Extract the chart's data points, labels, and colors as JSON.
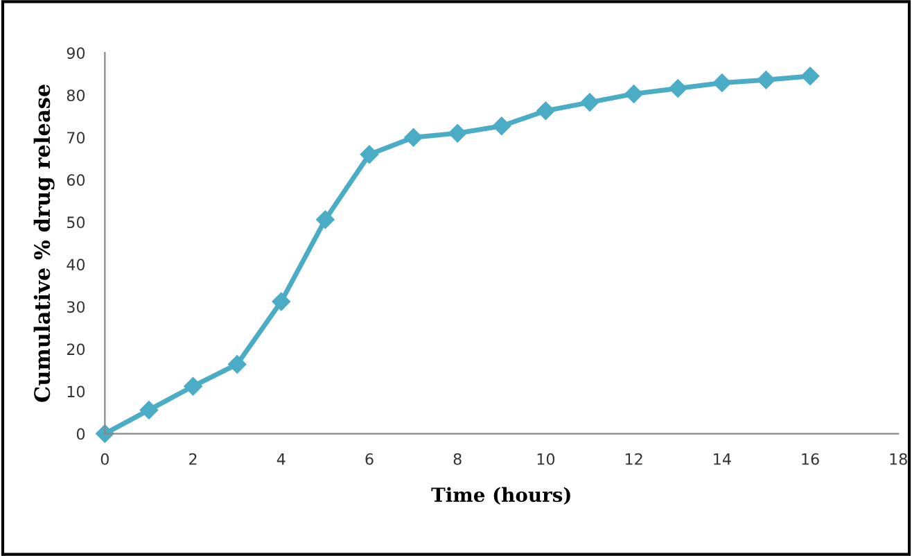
{
  "chart_data": {
    "type": "line",
    "xlabel": "Time (hours)",
    "ylabel": "Cumulative % drug release",
    "x": [
      0,
      1,
      2,
      3,
      4,
      5,
      6,
      7,
      8,
      9,
      10,
      11,
      12,
      13,
      14,
      15,
      16
    ],
    "series": [
      {
        "color": "#4bacc6",
        "values": [
          0,
          5.6,
          11.2,
          16.4,
          31.2,
          50.6,
          66,
          70,
          71,
          72.7,
          76.3,
          78.3,
          80.3,
          81.6,
          82.9,
          83.6,
          84.5
        ]
      }
    ],
    "xlim": [
      0,
      18
    ],
    "xticks": [
      0,
      2,
      4,
      6,
      8,
      10,
      12,
      14,
      16,
      18
    ],
    "ylim": [
      0,
      90
    ],
    "yticks": [
      0,
      10,
      20,
      30,
      40,
      50,
      60,
      70,
      80,
      90
    ],
    "grid": false,
    "legend": false,
    "marker": "diamond",
    "line_style": "solid"
  }
}
